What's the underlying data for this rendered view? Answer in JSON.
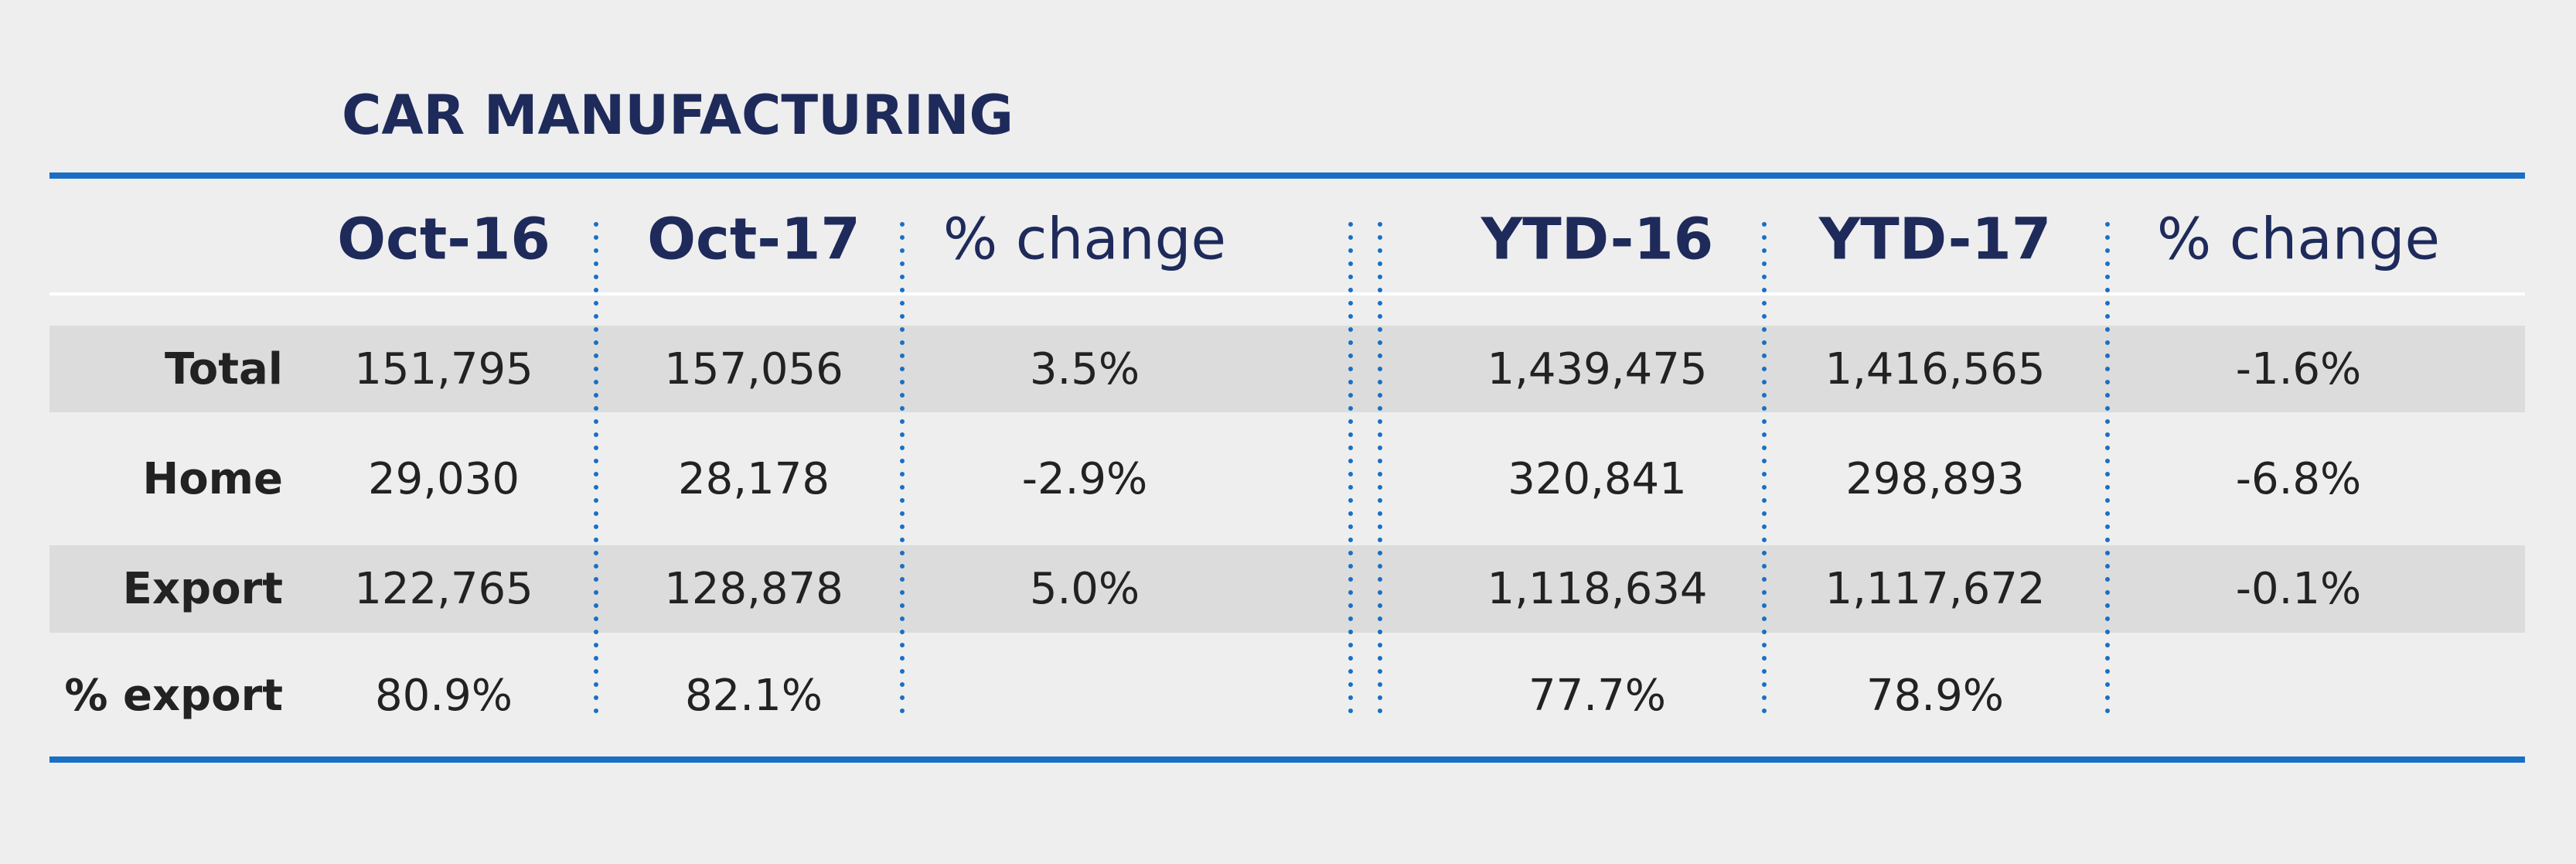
{
  "title": "CAR MANUFACTURING",
  "table": {
    "columns": [
      "Oct-16",
      "Oct-17",
      "% change",
      "YTD-16",
      "YTD-17",
      "% change"
    ],
    "rows": [
      {
        "label": "Total",
        "cells": [
          "151,795",
          "157,056",
          "3.5%",
          "1,439,475",
          "1,416,565",
          "-1.6%"
        ]
      },
      {
        "label": "Home",
        "cells": [
          "29,030",
          "28,178",
          "-2.9%",
          "320,841",
          "298,893",
          "-6.8%"
        ]
      },
      {
        "label": "Export",
        "cells": [
          "122,765",
          "128,878",
          "5.0%",
          "1,118,634",
          "1,117,672",
          "-0.1%"
        ]
      },
      {
        "label": "% export",
        "cells": [
          "80.9%",
          "82.1%",
          null,
          "77.7%",
          "78.9%",
          null
        ]
      }
    ]
  }
}
